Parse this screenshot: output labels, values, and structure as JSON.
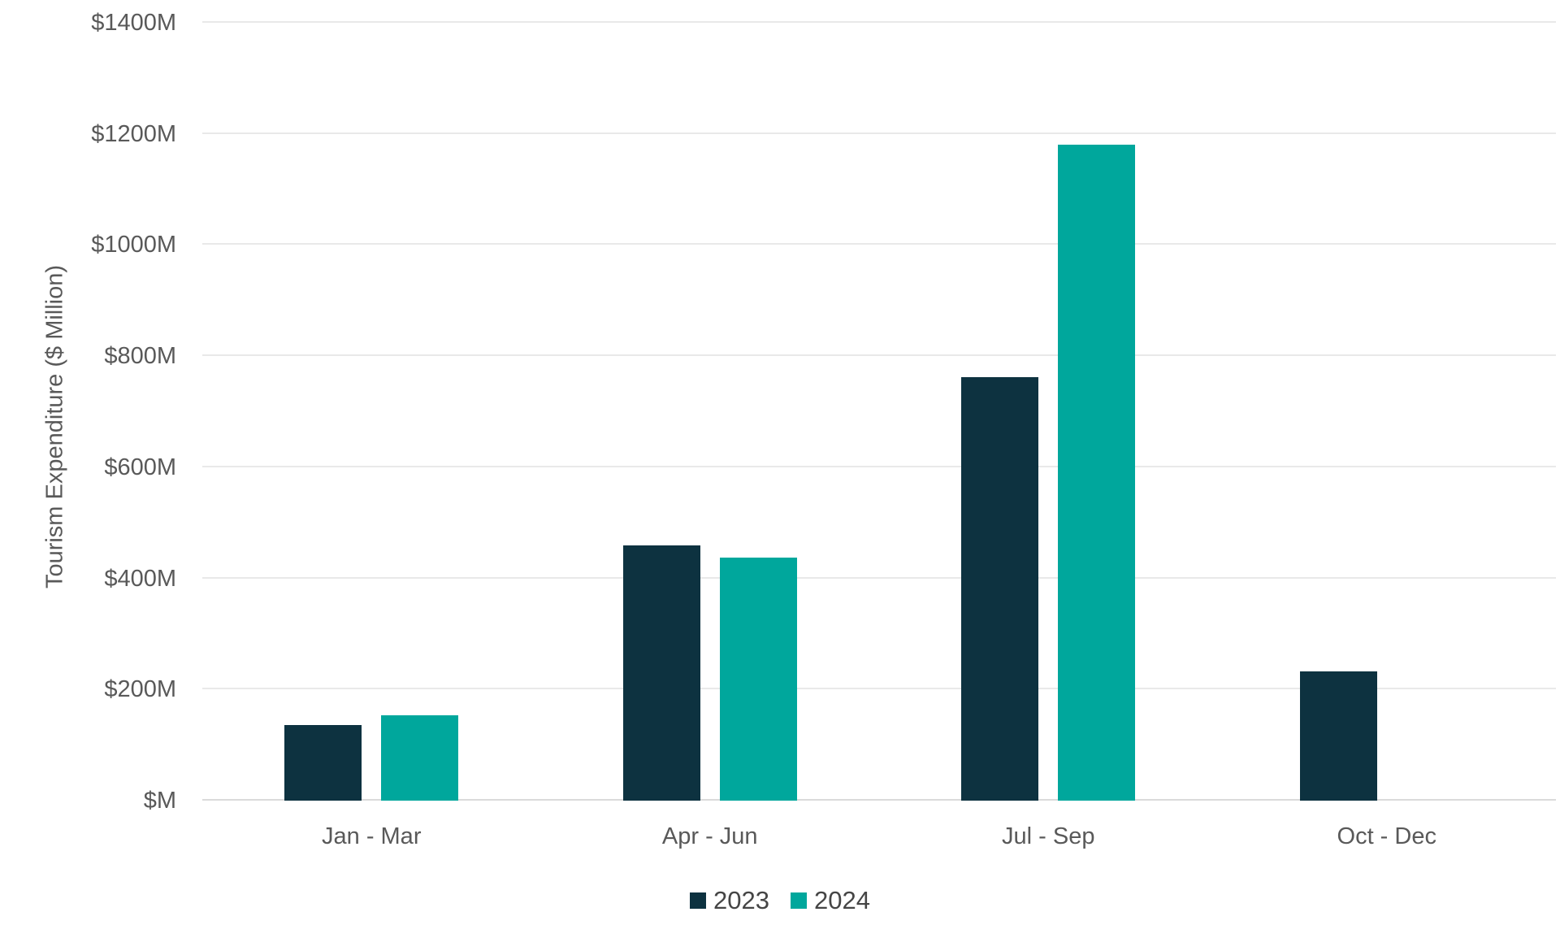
{
  "chart_data": {
    "type": "bar",
    "title": "",
    "categories": [
      "Jan - Mar",
      "Apr - Jun",
      "Jul - Sep",
      "Oct - Dec"
    ],
    "series": [
      {
        "name": "2023",
        "color": "#0d3240",
        "values": [
          136,
          460,
          762,
          233
        ]
      },
      {
        "name": "2024",
        "color": "#00a79c",
        "values": [
          153,
          438,
          1181,
          0
        ]
      }
    ],
    "xlabel": "",
    "ylabel": "Tourism Expenditure ($ Million)",
    "ylim": [
      0,
      1400
    ],
    "ytick_step": 200,
    "yticks": [
      {
        "value": 0,
        "label": "$M"
      },
      {
        "value": 200,
        "label": "$200M"
      },
      {
        "value": 400,
        "label": "$400M"
      },
      {
        "value": 600,
        "label": "$600M"
      },
      {
        "value": 800,
        "label": "$800M"
      },
      {
        "value": 1000,
        "label": "$1000M"
      },
      {
        "value": 1200,
        "label": "$1200M"
      },
      {
        "value": 1400,
        "label": "$1400M"
      }
    ],
    "grid": "horizontal",
    "legend_position": "bottom"
  },
  "colors": {
    "background": "#ffffff",
    "gridline": "#e9e9e9",
    "baseline": "#dadada",
    "axis_text": "#595959",
    "legend_text": "#454545"
  }
}
